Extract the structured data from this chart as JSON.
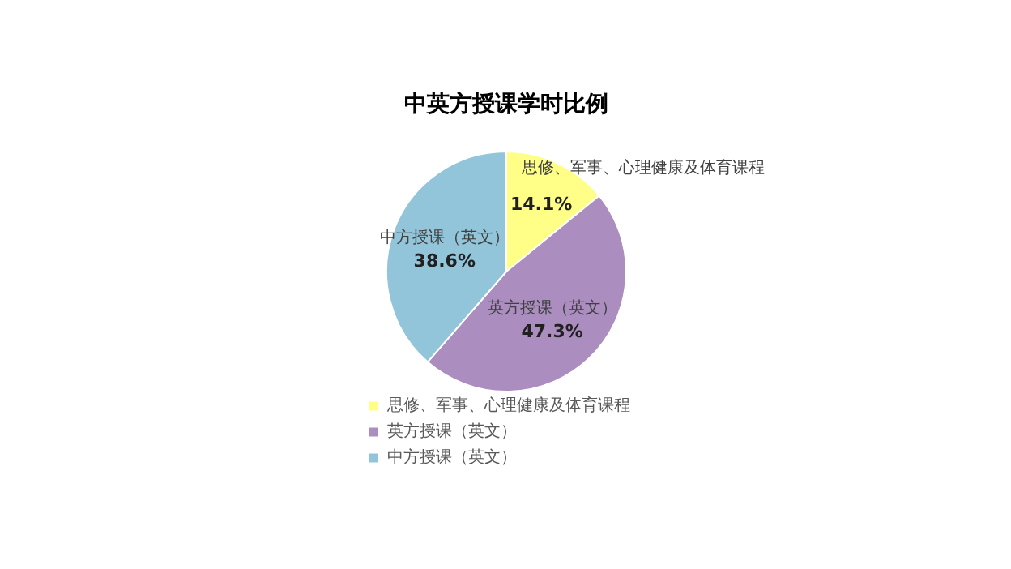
{
  "chart_data": {
    "type": "pie",
    "title": "中英方授课学时比例",
    "categories": [
      "思修、军事、心理健康及体育课程",
      "英方授课（英文）",
      "中方授课（英文）"
    ],
    "values": [
      14.1,
      47.3,
      38.6
    ],
    "value_labels": [
      "14.1%",
      "47.3%",
      "38.6%"
    ],
    "colors": [
      "#ffff88",
      "#ab8ebf",
      "#92c5da"
    ],
    "legend": "bottom"
  }
}
